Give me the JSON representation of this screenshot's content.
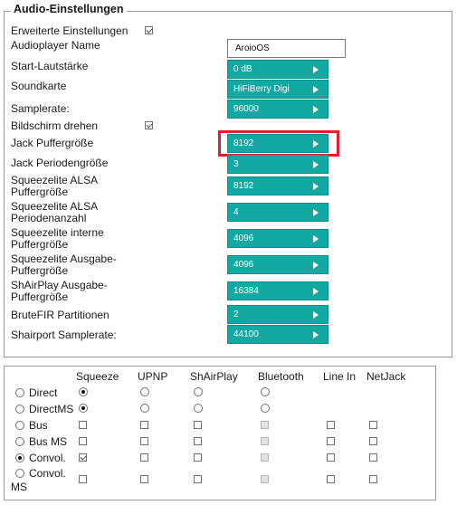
{
  "settings": {
    "legend": "Audio-Einstellungen",
    "rows": [
      {
        "label": "Erweiterte Einstellungen",
        "checked": true
      },
      {
        "label": "Audioplayer Name",
        "value": "AroioOS"
      },
      {
        "label": "Start-Lautstärke",
        "value": "0 dB"
      },
      {
        "label": "Soundkarte",
        "value": "HiFiBerry Digi"
      },
      {
        "label": "Samplerate:",
        "value": "96000"
      },
      {
        "label": "Bildschirm drehen",
        "checked": true
      },
      {
        "label": "Jack Puffergröße",
        "value": "8192"
      },
      {
        "label": "Jack Periodengröße",
        "value": "3"
      },
      {
        "label_line1": "Squeezelite ALSA",
        "label_line2": "Puffergröße",
        "value": "8192"
      },
      {
        "label_line1": "Squeezelite ALSA",
        "label_line2": "Periodenanzahl",
        "value": "4"
      },
      {
        "label_line1": "Squeezelite interne",
        "label_line2": "Puffergröße",
        "value": "4096"
      },
      {
        "label_line1": "Squeezelite Ausgabe-",
        "label_line2": "Puffergröße",
        "value": "4096"
      },
      {
        "label_line1": "ShAirPlay Ausgabe-",
        "label_line2": "Puffergröße",
        "value": "16384"
      },
      {
        "label": "BruteFIR Partitionen",
        "value": "2"
      },
      {
        "label": "Shairport Samplerate:",
        "value": "44100"
      }
    ]
  },
  "matrix": {
    "columns": [
      "Squeeze",
      "UPNP",
      "ShAirPlay",
      "Bluetooth",
      "Line In",
      "NetJack"
    ],
    "rows": [
      {
        "label": "Direct",
        "selected": false
      },
      {
        "label": "DirectMS",
        "selected": false
      },
      {
        "label": "Bus",
        "selected": false
      },
      {
        "label": "Bus MS",
        "selected": false
      },
      {
        "label": "Convol.",
        "selected": true
      },
      {
        "label_line1": "Convol.",
        "label_line2": "MS",
        "selected": false
      }
    ],
    "radio_row_states": [
      [
        "on",
        "off",
        "off",
        "off"
      ],
      [
        "on",
        "off",
        "off",
        "off"
      ]
    ],
    "check_row_states": [
      [
        "off",
        "off",
        "off",
        "disabled",
        "off",
        "off"
      ],
      [
        "off",
        "off",
        "off",
        "disabled",
        "off",
        "off"
      ],
      [
        "checked",
        "off",
        "off",
        "disabled",
        "off",
        "off"
      ],
      [
        "off",
        "off",
        "off",
        "disabled",
        "off",
        "off"
      ]
    ]
  }
}
